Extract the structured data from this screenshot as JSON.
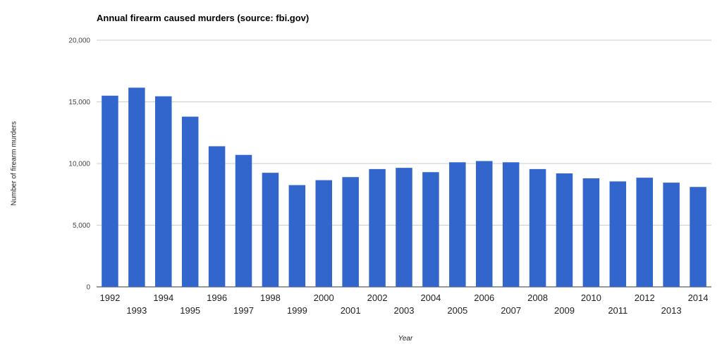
{
  "chart_data": {
    "type": "bar",
    "title": "Annual firearm caused murders (source: fbi.gov)",
    "xlabel": "Year",
    "ylabel": "Number of firearm murders",
    "categories": [
      "1992",
      "1993",
      "1994",
      "1995",
      "1996",
      "1997",
      "1998",
      "1999",
      "2000",
      "2001",
      "2002",
      "2003",
      "2004",
      "2005",
      "2006",
      "2007",
      "2008",
      "2009",
      "2010",
      "2011",
      "2012",
      "2013",
      "2014"
    ],
    "values": [
      15500,
      16150,
      15450,
      13800,
      11400,
      10700,
      9250,
      8250,
      8650,
      8900,
      9550,
      9650,
      9300,
      10100,
      10200,
      10100,
      9550,
      9200,
      8800,
      8550,
      8850,
      8450,
      8100
    ],
    "ylim": [
      0,
      20000
    ],
    "yticks": [
      0,
      5000,
      10000,
      15000,
      20000
    ],
    "ytick_labels": [
      "0",
      "5,000",
      "10,000",
      "15,000",
      "20,000"
    ],
    "grid": true,
    "legend": "none",
    "bar_color": "#3366cc"
  }
}
